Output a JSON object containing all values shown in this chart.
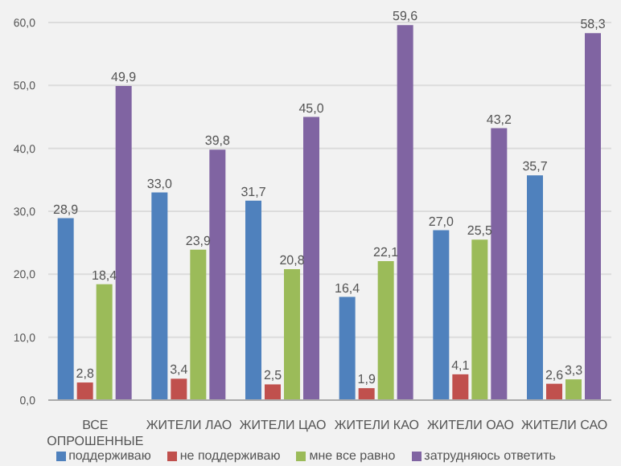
{
  "chart_data": {
    "type": "bar",
    "categories": [
      "ВСЕ ОПРОШЕННЫЕ",
      "ЖИТЕЛИ ЛАО",
      "ЖИТЕЛИ ЦАО",
      "ЖИТЕЛИ КАО",
      "ЖИТЕЛИ ОАО",
      "ЖИТЕЛИ САО"
    ],
    "series": [
      {
        "name": "поддерживаю",
        "color": "#4f81bd",
        "values": [
          28.9,
          33.0,
          31.7,
          16.4,
          27.0,
          35.7
        ],
        "value_labels": [
          "28,9",
          "33,0",
          "31,7",
          "16,4",
          "27,0",
          "35,7"
        ]
      },
      {
        "name": "не поддерживаю",
        "color": "#c0504d",
        "values": [
          2.8,
          3.4,
          2.5,
          1.9,
          4.1,
          2.6
        ],
        "value_labels": [
          "2,8",
          "3,4",
          "2,5",
          "1,9",
          "4,1",
          "2,6"
        ]
      },
      {
        "name": "мне все равно",
        "color": "#9bbb59",
        "values": [
          18.4,
          23.9,
          20.8,
          22.1,
          25.5,
          3.3
        ],
        "value_labels": [
          "18,4",
          "23,9",
          "20,8",
          "22,1",
          "25,5",
          "3,3"
        ]
      },
      {
        "name": "затрудняюсь ответить",
        "color": "#8064a2",
        "values": [
          49.9,
          39.8,
          45.0,
          59.6,
          43.2,
          58.3
        ],
        "value_labels": [
          "49,9",
          "39,8",
          "45,0",
          "59,6",
          "43,2",
          "58,3"
        ]
      }
    ],
    "ylim": [
      0,
      60
    ],
    "yticks": [
      {
        "value": 0,
        "label": "0,0"
      },
      {
        "value": 10,
        "label": "10,0"
      },
      {
        "value": 20,
        "label": "20,0"
      },
      {
        "value": 30,
        "label": "30,0"
      },
      {
        "value": 40,
        "label": "40,0"
      },
      {
        "value": 50,
        "label": "50,0"
      },
      {
        "value": 60,
        "label": "60,0"
      }
    ],
    "grid": "y",
    "legend": "bottom"
  }
}
